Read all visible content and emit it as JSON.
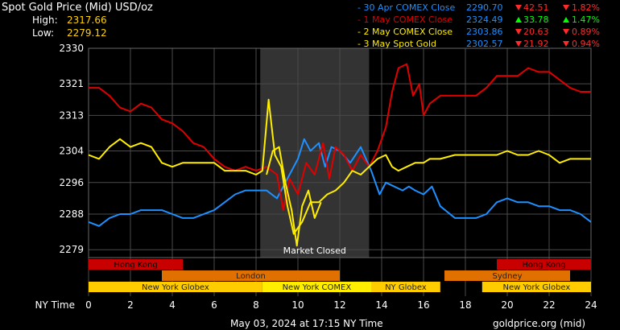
{
  "header": {
    "title": "Spot Gold Price (Mid) USD/oz",
    "high_label": "High:",
    "high_value": "2317.66",
    "low_label": "Low:",
    "low_value": "2279.12"
  },
  "legend": [
    {
      "label": "- 30 Apr COMEX Close",
      "color": "#1e90ff",
      "price": "2290.70",
      "change": "42.51",
      "pct": "1.82%",
      "direction": "down"
    },
    {
      "label": "- 1 May COMEX Close",
      "color": "#e00000",
      "price": "2324.49",
      "change": "33.78",
      "pct": "1.47%",
      "direction": "up"
    },
    {
      "label": "- 2 May COMEX Close",
      "color": "#ffee00",
      "price": "2303.86",
      "change": "20.63",
      "pct": "0.89%",
      "direction": "down"
    },
    {
      "label": "- 3 May Spot Gold",
      "color": "#ffee00",
      "price": "2302.57",
      "change": "21.92",
      "pct": "0.94%",
      "direction": "down"
    }
  ],
  "colors": {
    "up": "#00ff00",
    "down": "#ff2a2a",
    "price": "#1e90ff"
  },
  "market_closed_label": "Market Closed",
  "sessions": [
    {
      "name": "Hong Kong",
      "start": 0,
      "end": 4.5,
      "row": 0,
      "color": "#c80000"
    },
    {
      "name": "Hong Kong",
      "start": 19.5,
      "end": 24,
      "row": 0,
      "color": "#c80000"
    },
    {
      "name": "London",
      "start": 3.5,
      "end": 12,
      "row": 1,
      "color": "#e07000"
    },
    {
      "name": "Sydney",
      "start": 17,
      "end": 23,
      "row": 1,
      "color": "#e07000"
    },
    {
      "name": "New York Globex",
      "start": 0,
      "end": 8.3,
      "row": 2,
      "color": "#ffcc00"
    },
    {
      "name": "New York COMEX",
      "start": 8.3,
      "end": 13.5,
      "row": 2,
      "color": "#ffee00"
    },
    {
      "name": "NY Globex",
      "start": 13.5,
      "end": 16.8,
      "row": 2,
      "color": "#ffcc00"
    },
    {
      "name": "New York Globex",
      "start": 18.8,
      "end": 24,
      "row": 2,
      "color": "#ffcc00"
    }
  ],
  "chart_data": {
    "type": "line",
    "xlabel": "NY Time",
    "x_ticks": [
      0,
      2,
      4,
      6,
      8,
      10,
      12,
      14,
      16,
      18,
      20,
      22,
      24
    ],
    "y_ticks": [
      2279,
      2288,
      2296,
      2304,
      2313,
      2321,
      2330
    ],
    "xlim": [
      0,
      24
    ],
    "ylim": [
      2277,
      2330
    ],
    "grid": true,
    "shaded_region": {
      "start": 8.2,
      "end": 13.4,
      "label": "Market Closed"
    },
    "series": [
      {
        "name": "30 Apr COMEX Close",
        "color": "#1e90ff",
        "points": [
          [
            0,
            2286
          ],
          [
            0.5,
            2285
          ],
          [
            1,
            2287
          ],
          [
            1.5,
            2288
          ],
          [
            2,
            2288
          ],
          [
            2.5,
            2289
          ],
          [
            3,
            2289
          ],
          [
            3.5,
            2289
          ],
          [
            4,
            2288
          ],
          [
            4.5,
            2287
          ],
          [
            5,
            2287
          ],
          [
            5.5,
            2288
          ],
          [
            6,
            2289
          ],
          [
            6.5,
            2291
          ],
          [
            7,
            2293
          ],
          [
            7.5,
            2294
          ],
          [
            8,
            2294
          ],
          [
            8.5,
            2294
          ],
          [
            9,
            2292
          ],
          [
            9.5,
            2297
          ],
          [
            10,
            2302
          ],
          [
            10.3,
            2307
          ],
          [
            10.6,
            2304
          ],
          [
            11,
            2306
          ],
          [
            11.3,
            2300
          ],
          [
            11.6,
            2305
          ],
          [
            12,
            2304
          ],
          [
            12.5,
            2301
          ],
          [
            13,
            2305
          ],
          [
            13.5,
            2299
          ],
          [
            13.9,
            2293
          ],
          [
            14.2,
            2296
          ],
          [
            14.6,
            2295
          ],
          [
            15,
            2294
          ],
          [
            15.3,
            2295
          ],
          [
            15.6,
            2294
          ],
          [
            16,
            2293
          ],
          [
            16.4,
            2295
          ],
          [
            16.8,
            2290
          ],
          [
            17.5,
            2287
          ],
          [
            18.5,
            2287
          ],
          [
            19,
            2288
          ],
          [
            19.5,
            2291
          ],
          [
            20,
            2292
          ],
          [
            20.5,
            2291
          ],
          [
            21,
            2291
          ],
          [
            21.5,
            2290
          ],
          [
            22,
            2290
          ],
          [
            22.5,
            2289
          ],
          [
            23,
            2289
          ],
          [
            23.5,
            2288
          ],
          [
            24,
            2286
          ]
        ]
      },
      {
        "name": "1 May COMEX Close",
        "color": "#e00000",
        "points": [
          [
            0,
            2320
          ],
          [
            0.5,
            2320
          ],
          [
            1,
            2318
          ],
          [
            1.5,
            2315
          ],
          [
            2,
            2314
          ],
          [
            2.5,
            2316
          ],
          [
            3,
            2315
          ],
          [
            3.5,
            2312
          ],
          [
            4,
            2311
          ],
          [
            4.5,
            2309
          ],
          [
            5,
            2306
          ],
          [
            5.5,
            2305
          ],
          [
            6,
            2302
          ],
          [
            6.5,
            2300
          ],
          [
            7,
            2299
          ],
          [
            7.5,
            2300
          ],
          [
            8,
            2299
          ],
          [
            8.5,
            2300
          ],
          [
            9,
            2298
          ],
          [
            9.3,
            2289
          ],
          [
            9.6,
            2297
          ],
          [
            10,
            2293
          ],
          [
            10.4,
            2301
          ],
          [
            10.8,
            2298
          ],
          [
            11.2,
            2306
          ],
          [
            11.5,
            2297
          ],
          [
            11.8,
            2305
          ],
          [
            12.2,
            2303
          ],
          [
            12.6,
            2299
          ],
          [
            13,
            2303
          ],
          [
            13.4,
            2300
          ],
          [
            13.8,
            2304
          ],
          [
            14.2,
            2310
          ],
          [
            14.5,
            2319
          ],
          [
            14.8,
            2325
          ],
          [
            15.2,
            2326
          ],
          [
            15.5,
            2318
          ],
          [
            15.8,
            2321
          ],
          [
            16,
            2313
          ],
          [
            16.3,
            2316
          ],
          [
            16.8,
            2318
          ],
          [
            17.5,
            2318
          ],
          [
            18.5,
            2318
          ],
          [
            19,
            2320
          ],
          [
            19.5,
            2323
          ],
          [
            20,
            2323
          ],
          [
            20.5,
            2323
          ],
          [
            21,
            2325
          ],
          [
            21.5,
            2324
          ],
          [
            22,
            2324
          ],
          [
            22.5,
            2322
          ],
          [
            23,
            2320
          ],
          [
            23.5,
            2319
          ],
          [
            24,
            2319
          ]
        ]
      },
      {
        "name": "2 May COMEX Close",
        "color": "#ffee00",
        "points": [
          [
            0,
            2303
          ],
          [
            0.5,
            2302
          ],
          [
            1,
            2305
          ],
          [
            1.5,
            2307
          ],
          [
            2,
            2305
          ],
          [
            2.5,
            2306
          ],
          [
            3,
            2305
          ],
          [
            3.5,
            2301
          ],
          [
            4,
            2300
          ],
          [
            4.5,
            2301
          ],
          [
            5,
            2301
          ],
          [
            5.5,
            2301
          ],
          [
            6,
            2301
          ],
          [
            6.5,
            2299
          ],
          [
            7,
            2299
          ],
          [
            7.5,
            2299
          ],
          [
            8,
            2298
          ],
          [
            8.3,
            2299
          ],
          [
            8.6,
            2317
          ],
          [
            8.9,
            2303
          ],
          [
            9.2,
            2300
          ],
          [
            9.5,
            2290
          ],
          [
            9.8,
            2283
          ],
          [
            10.2,
            2286
          ],
          [
            10.6,
            2291
          ],
          [
            11,
            2291
          ],
          [
            11.4,
            2293
          ],
          [
            11.8,
            2294
          ],
          [
            12.2,
            2296
          ],
          [
            12.6,
            2299
          ],
          [
            13,
            2298
          ],
          [
            13.4,
            2300
          ],
          [
            13.8,
            2302
          ],
          [
            14.2,
            2303
          ],
          [
            14.5,
            2300
          ],
          [
            14.8,
            2299
          ],
          [
            15.2,
            2300
          ],
          [
            15.6,
            2301
          ],
          [
            16,
            2301
          ],
          [
            16.3,
            2302
          ],
          [
            16.8,
            2302
          ],
          [
            17.5,
            2303
          ],
          [
            18.5,
            2303
          ],
          [
            19,
            2303
          ],
          [
            19.5,
            2303
          ],
          [
            20,
            2304
          ],
          [
            20.5,
            2303
          ],
          [
            21,
            2303
          ],
          [
            21.5,
            2304
          ],
          [
            22,
            2303
          ],
          [
            22.5,
            2301
          ],
          [
            23,
            2302
          ],
          [
            23.5,
            2302
          ],
          [
            24,
            2302
          ]
        ]
      },
      {
        "name": "3 May Spot Gold",
        "color": "#ffee00",
        "points": [
          [
            8.5,
            2298
          ],
          [
            8.8,
            2304
          ],
          [
            9.1,
            2305
          ],
          [
            9.4,
            2296
          ],
          [
            9.7,
            2289
          ],
          [
            9.95,
            2280
          ],
          [
            10.2,
            2290
          ],
          [
            10.5,
            2294
          ],
          [
            10.8,
            2287
          ],
          [
            11.1,
            2291
          ]
        ]
      }
    ],
    "footer_time": "May 03, 2024 at 17:15 NY Time",
    "footer_source": "goldprice.org (mid)"
  }
}
